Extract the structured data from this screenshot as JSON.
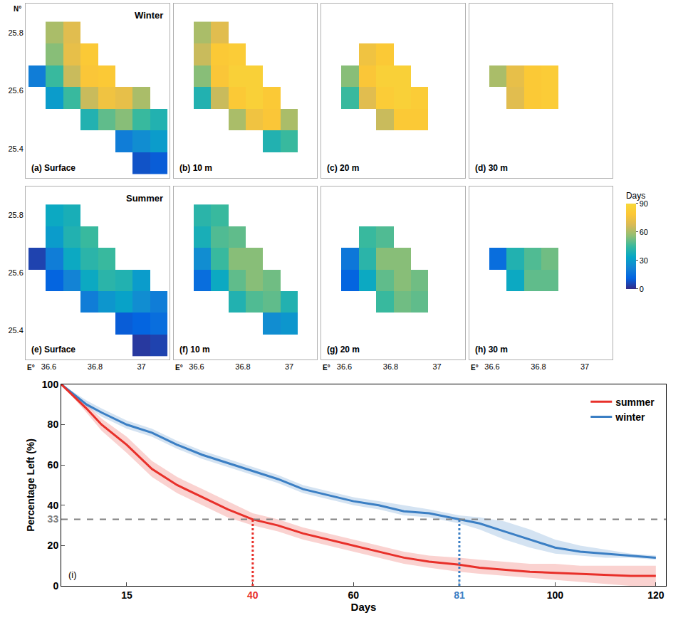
{
  "chart_data": [
    {
      "type": "heatmap",
      "title": "(a) Surface",
      "subtitle": "Winter",
      "y_label": "N°",
      "tick_labels": "y",
      "grid": false,
      "x": [
        36.55,
        36.625,
        36.7,
        36.775,
        36.85,
        36.925,
        37.0,
        37.075
      ],
      "y": [
        25.35,
        25.425,
        25.5,
        25.575,
        25.65,
        25.725,
        25.8
      ],
      "z": [
        [
          null,
          null,
          null,
          null,
          null,
          null,
          8,
          10
        ],
        [
          null,
          null,
          null,
          null,
          null,
          20,
          25,
          30
        ],
        [
          null,
          null,
          null,
          40,
          50,
          55,
          45,
          40
        ],
        [
          null,
          30,
          45,
          65,
          75,
          72,
          60,
          null
        ],
        [
          20,
          45,
          65,
          78,
          80,
          null,
          null,
          null
        ],
        [
          null,
          55,
          72,
          80,
          null,
          null,
          null,
          null
        ],
        [
          null,
          60,
          70,
          null,
          null,
          null,
          null,
          null
        ]
      ],
      "xlim": [
        36.5,
        37.12
      ],
      "ylim": [
        25.3,
        25.9
      ],
      "xticks": [
        36.6,
        36.8,
        37
      ],
      "yticks": [
        25.4,
        25.6,
        25.8
      ]
    },
    {
      "type": "heatmap",
      "title": "(b) 10 m",
      "tick_labels": false,
      "grid": false,
      "x": [
        36.55,
        36.625,
        36.7,
        36.775,
        36.85,
        36.925,
        37.0,
        37.075
      ],
      "y": [
        25.35,
        25.425,
        25.5,
        25.575,
        25.65,
        25.725,
        25.8
      ],
      "z": [
        [
          null,
          null,
          null,
          null,
          null,
          null,
          null,
          null
        ],
        [
          null,
          null,
          null,
          null,
          null,
          40,
          45,
          null
        ],
        [
          null,
          null,
          null,
          60,
          75,
          78,
          60,
          null
        ],
        [
          null,
          40,
          65,
          80,
          85,
          80,
          null,
          null
        ],
        [
          null,
          55,
          78,
          85,
          85,
          null,
          null,
          null
        ],
        [
          null,
          65,
          80,
          82,
          null,
          null,
          null,
          null
        ],
        [
          null,
          60,
          70,
          null,
          null,
          null,
          null,
          null
        ]
      ],
      "xlim": [
        36.5,
        37.12
      ],
      "ylim": [
        25.3,
        25.9
      ],
      "xticks": [
        36.6,
        36.8,
        37
      ],
      "yticks": [
        25.4,
        25.6,
        25.8
      ]
    },
    {
      "type": "heatmap",
      "title": "(c) 20 m",
      "tick_labels": false,
      "grid": false,
      "x": [
        36.55,
        36.625,
        36.7,
        36.775,
        36.85,
        36.925,
        37.0,
        37.075
      ],
      "y": [
        25.35,
        25.425,
        25.5,
        25.575,
        25.65,
        25.725,
        25.8
      ],
      "z": [
        [
          null,
          null,
          null,
          null,
          null,
          null,
          null,
          null
        ],
        [
          null,
          null,
          null,
          null,
          null,
          null,
          null,
          null
        ],
        [
          null,
          null,
          null,
          65,
          80,
          80,
          null,
          null
        ],
        [
          null,
          45,
          70,
          82,
          85,
          82,
          null,
          null
        ],
        [
          null,
          55,
          78,
          85,
          85,
          null,
          null,
          null
        ],
        [
          null,
          null,
          75,
          80,
          null,
          null,
          null,
          null
        ],
        [
          null,
          null,
          null,
          null,
          null,
          null,
          null,
          null
        ]
      ],
      "xlim": [
        36.5,
        37.12
      ],
      "ylim": [
        25.3,
        25.9
      ],
      "xticks": [
        36.6,
        36.8,
        37
      ],
      "yticks": [
        25.4,
        25.6,
        25.8
      ]
    },
    {
      "type": "heatmap",
      "title": "(d) 30 m",
      "tick_labels": false,
      "grid": false,
      "colorbar": {
        "title": "Days",
        "range": [
          0,
          90
        ],
        "ticks": [
          0,
          30,
          60,
          90
        ]
      },
      "x": [
        36.55,
        36.625,
        36.7,
        36.775,
        36.85,
        36.925,
        37.0,
        37.075
      ],
      "y": [
        25.35,
        25.425,
        25.5,
        25.575,
        25.65,
        25.725,
        25.8
      ],
      "z": [
        [
          null,
          null,
          null,
          null,
          null,
          null,
          null,
          null
        ],
        [
          null,
          null,
          null,
          null,
          null,
          null,
          null,
          null
        ],
        [
          null,
          null,
          null,
          null,
          null,
          null,
          null,
          null
        ],
        [
          null,
          null,
          70,
          80,
          82,
          null,
          null,
          null
        ],
        [
          null,
          60,
          72,
          80,
          82,
          null,
          null,
          null
        ],
        [
          null,
          null,
          null,
          null,
          null,
          null,
          null,
          null
        ],
        [
          null,
          null,
          null,
          null,
          null,
          null,
          null,
          null
        ]
      ],
      "xlim": [
        36.5,
        37.12
      ],
      "ylim": [
        25.3,
        25.9
      ],
      "xticks": [
        36.6,
        36.8,
        37
      ],
      "yticks": [
        25.4,
        25.6,
        25.8
      ]
    },
    {
      "type": "heatmap",
      "title": "(e) Surface",
      "subtitle": "Summer",
      "x_label": "E°",
      "tick_labels": true,
      "grid": false,
      "x": [
        36.55,
        36.625,
        36.7,
        36.775,
        36.85,
        36.925,
        37.0,
        37.075
      ],
      "y": [
        25.35,
        25.425,
        25.5,
        25.575,
        25.65,
        25.725,
        25.8
      ],
      "z": [
        [
          null,
          null,
          null,
          null,
          null,
          null,
          3,
          5
        ],
        [
          null,
          null,
          null,
          null,
          null,
          10,
          12,
          15
        ],
        [
          null,
          null,
          null,
          20,
          28,
          32,
          25,
          20
        ],
        [
          null,
          12,
          22,
          35,
          42,
          40,
          30,
          null
        ],
        [
          5,
          20,
          35,
          42,
          45,
          null,
          null,
          null
        ],
        [
          null,
          30,
          40,
          45,
          null,
          null,
          null,
          null
        ],
        [
          null,
          35,
          38,
          null,
          null,
          null,
          null,
          null
        ]
      ],
      "xlim": [
        36.5,
        37.12
      ],
      "ylim": [
        25.3,
        25.9
      ],
      "xticks": [
        36.6,
        36.8,
        37
      ],
      "yticks": [
        25.4,
        25.6,
        25.8
      ]
    },
    {
      "type": "heatmap",
      "title": "(f) 10 m",
      "x_label": "E°",
      "tick_labels": "x",
      "grid": false,
      "x": [
        36.55,
        36.625,
        36.7,
        36.775,
        36.85,
        36.925,
        37.0,
        37.075
      ],
      "y": [
        25.35,
        25.425,
        25.5,
        25.575,
        25.65,
        25.725,
        25.8
      ],
      "z": [
        [
          null,
          null,
          null,
          null,
          null,
          null,
          null,
          null
        ],
        [
          null,
          null,
          null,
          null,
          null,
          25,
          28,
          null
        ],
        [
          null,
          null,
          null,
          40,
          48,
          50,
          40,
          null
        ],
        [
          null,
          15,
          35,
          50,
          55,
          52,
          null,
          null
        ],
        [
          null,
          25,
          45,
          55,
          55,
          null,
          null,
          null
        ],
        [
          null,
          38,
          48,
          50,
          null,
          null,
          null,
          null
        ],
        [
          null,
          42,
          45,
          null,
          null,
          null,
          null,
          null
        ]
      ],
      "xlim": [
        36.5,
        37.12
      ],
      "ylim": [
        25.3,
        25.9
      ],
      "xticks": [
        36.6,
        36.8,
        37
      ],
      "yticks": [
        25.4,
        25.6,
        25.8
      ]
    },
    {
      "type": "heatmap",
      "title": "(g) 20 m",
      "x_label": "E°",
      "tick_labels": "x",
      "grid": false,
      "x": [
        36.55,
        36.625,
        36.7,
        36.775,
        36.85,
        36.925,
        37.0,
        37.075
      ],
      "y": [
        25.35,
        25.425,
        25.5,
        25.575,
        25.65,
        25.725,
        25.8
      ],
      "z": [
        [
          null,
          null,
          null,
          null,
          null,
          null,
          null,
          null
        ],
        [
          null,
          null,
          null,
          null,
          null,
          null,
          null,
          null
        ],
        [
          null,
          null,
          null,
          45,
          52,
          50,
          null,
          null
        ],
        [
          null,
          12,
          35,
          50,
          55,
          52,
          null,
          null
        ],
        [
          null,
          18,
          42,
          55,
          55,
          null,
          null,
          null
        ],
        [
          null,
          null,
          45,
          48,
          null,
          null,
          null,
          null
        ],
        [
          null,
          null,
          null,
          null,
          null,
          null,
          null,
          null
        ]
      ],
      "xlim": [
        36.5,
        37.12
      ],
      "ylim": [
        25.3,
        25.9
      ],
      "xticks": [
        36.6,
        36.8,
        37
      ],
      "yticks": [
        25.4,
        25.6,
        25.8
      ]
    },
    {
      "type": "heatmap",
      "title": "(h) 30 m",
      "x_label": "E°",
      "tick_labels": "x",
      "grid": false,
      "x": [
        36.55,
        36.625,
        36.7,
        36.775,
        36.85,
        36.925,
        37.0,
        37.075
      ],
      "y": [
        25.35,
        25.425,
        25.5,
        25.575,
        25.65,
        25.725,
        25.8
      ],
      "z": [
        [
          null,
          null,
          null,
          null,
          null,
          null,
          null,
          null
        ],
        [
          null,
          null,
          null,
          null,
          null,
          null,
          null,
          null
        ],
        [
          null,
          null,
          null,
          null,
          null,
          null,
          null,
          null
        ],
        [
          null,
          null,
          35,
          50,
          50,
          null,
          null,
          null
        ],
        [
          null,
          15,
          40,
          48,
          52,
          null,
          null,
          null
        ],
        [
          null,
          null,
          null,
          null,
          null,
          null,
          null,
          null
        ],
        [
          null,
          null,
          null,
          null,
          null,
          null,
          null,
          null
        ]
      ],
      "xlim": [
        36.5,
        37.12
      ],
      "ylim": [
        25.3,
        25.9
      ],
      "xticks": [
        36.6,
        36.8,
        37
      ],
      "yticks": [
        25.4,
        25.6,
        25.8
      ]
    },
    {
      "type": "line",
      "title": "(i)",
      "x_label": "Days",
      "y_label": "Percentage Left (%)",
      "x": [
        2,
        7,
        10,
        15,
        20,
        25,
        30,
        35,
        40,
        45,
        50,
        55,
        60,
        65,
        70,
        75,
        81,
        85,
        90,
        95,
        100,
        105,
        110,
        115,
        120
      ],
      "series": [
        {
          "name": "winter",
          "color": "#3b7fc4",
          "values": [
            100,
            90,
            86,
            80,
            76,
            70,
            65,
            61,
            57,
            53,
            48,
            45,
            42,
            40,
            37,
            36,
            33,
            31,
            27,
            23,
            19,
            17,
            16,
            15,
            14
          ],
          "lower": [
            100,
            89,
            84,
            78,
            74,
            68,
            63,
            59,
            55,
            51,
            46,
            43,
            40,
            38,
            35,
            34,
            31,
            28,
            23,
            19,
            16,
            15,
            14,
            14,
            13
          ],
          "upper": [
            100,
            92,
            88,
            82,
            78,
            72,
            67,
            63,
            59,
            55,
            50,
            47,
            44,
            42,
            40,
            38,
            35,
            34,
            32,
            28,
            23,
            20,
            18,
            16,
            15
          ]
        },
        {
          "name": "summer",
          "color": "#e8302a",
          "values": [
            100,
            88,
            80,
            70,
            58,
            50,
            44,
            38,
            33,
            30,
            26,
            23,
            20,
            17,
            14,
            12,
            10.5,
            9,
            8,
            7,
            6.5,
            6,
            5.5,
            5,
            5
          ],
          "lower": [
            100,
            86,
            77,
            66,
            54,
            46,
            40,
            34,
            30,
            27,
            23,
            20,
            17,
            14,
            11,
            9,
            7,
            6,
            5,
            4,
            3,
            2,
            1,
            0,
            0
          ],
          "upper": [
            100,
            90,
            83,
            74,
            62,
            54,
            48,
            42,
            36,
            33,
            29,
            26,
            23,
            20,
            17,
            15,
            14,
            13,
            12,
            11,
            11,
            10,
            10,
            10,
            10
          ]
        }
      ],
      "reference_lines": [
        {
          "axis": "y",
          "value": 33,
          "color": "#808080",
          "line_style": "dash"
        },
        {
          "axis": "x",
          "value": 40,
          "to": 33,
          "color": "#e8302a",
          "line_style": "dot"
        },
        {
          "axis": "x",
          "value": 81,
          "to": 33,
          "color": "#3b7fc4",
          "line_style": "dot"
        }
      ],
      "xlim": [
        2,
        122
      ],
      "xticks": [
        15,
        40,
        60,
        81,
        100,
        120
      ],
      "ylim": [
        0,
        100
      ],
      "yticks": [
        0,
        20,
        33,
        40,
        60,
        80,
        100
      ],
      "legend": "top right",
      "grid": false
    }
  ]
}
